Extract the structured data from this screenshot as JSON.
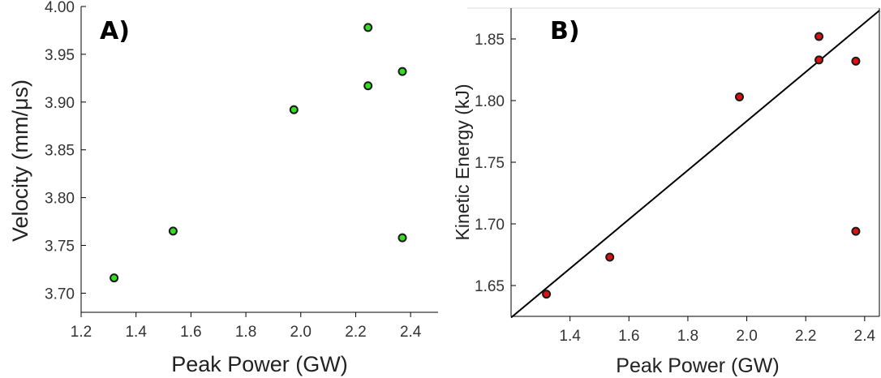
{
  "chart_data": [
    {
      "type": "scatter",
      "panel_label": "A)",
      "xlabel": "Peak Power (GW)",
      "ylabel": "Velocity (mm/μs)",
      "xlim": [
        1.2,
        2.5
      ],
      "ylim": [
        3.68,
        4.0
      ],
      "xticks": [
        "1.2",
        "1.4",
        "1.6",
        "1.8",
        "2.0",
        "2.2",
        "2.4"
      ],
      "yticks": [
        "3.70",
        "3.75",
        "3.80",
        "3.85",
        "3.90",
        "3.95",
        "4.00"
      ],
      "grid": false,
      "series": [
        {
          "x": [
            1.32,
            1.535,
            1.975,
            2.245,
            2.245,
            2.37,
            2.37
          ],
          "y": [
            3.716,
            3.765,
            3.892,
            3.978,
            3.917,
            3.932,
            3.758
          ],
          "color": "#33dd22"
        }
      ]
    },
    {
      "type": "scatter",
      "panel_label": "B)",
      "xlabel": "Peak Power (GW)",
      "ylabel": "Kinetic Energy (kJ)",
      "xlim": [
        1.2,
        2.45
      ],
      "ylim": [
        1.625,
        1.875
      ],
      "xticks": [
        "1.4",
        "1.6",
        "1.8",
        "2.0",
        "2.2",
        "2.4"
      ],
      "yticks": [
        "1.65",
        "1.70",
        "1.75",
        "1.80",
        "1.85"
      ],
      "grid": false,
      "series": [
        {
          "x": [
            1.32,
            1.535,
            1.975,
            2.245,
            2.245,
            2.37,
            2.37
          ],
          "y": [
            1.643,
            1.673,
            1.803,
            1.852,
            1.833,
            1.832,
            1.694
          ],
          "color": "#dd1111"
        }
      ],
      "fit_line": {
        "x": [
          1.2,
          2.45
        ],
        "y": [
          1.624,
          1.873
        ],
        "color": "#000000"
      }
    }
  ]
}
